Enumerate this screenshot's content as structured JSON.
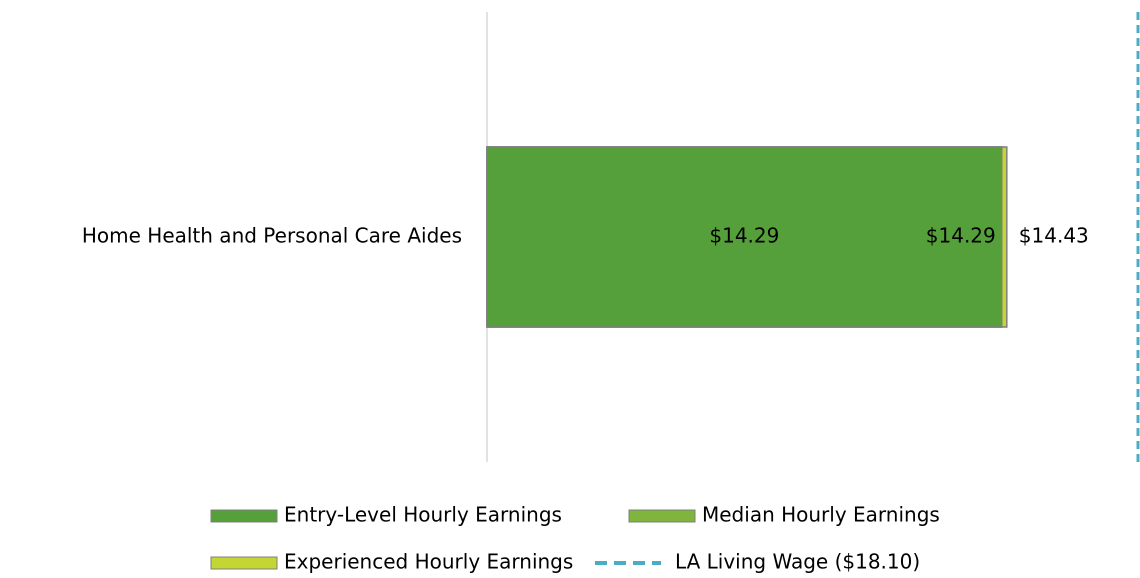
{
  "chart_data": {
    "type": "bar",
    "orientation": "horizontal",
    "overlap": true,
    "categories": [
      "Home Health and Personal Care Aides"
    ],
    "xlim": [
      0,
      18.1
    ],
    "legend": "bottom",
    "series": [
      {
        "name": "Entry-Level Hourly Earnings",
        "color": "#55a03a",
        "values": [
          14.29
        ],
        "value_labels": [
          "$14.29"
        ]
      },
      {
        "name": "Median Hourly Earnings",
        "color": "#7fb53d",
        "values": [
          14.29
        ],
        "value_labels": [
          "$14.29"
        ]
      },
      {
        "name": "Experienced Hourly Earnings",
        "color": "#c4d634",
        "values": [
          14.43
        ],
        "value_labels": [
          "$14.43"
        ]
      },
      {
        "name": "LA Living Wage ($18.10)",
        "color": "#4bacc6",
        "type": "line",
        "dashed": true,
        "values": [
          18.1
        ]
      }
    ]
  }
}
